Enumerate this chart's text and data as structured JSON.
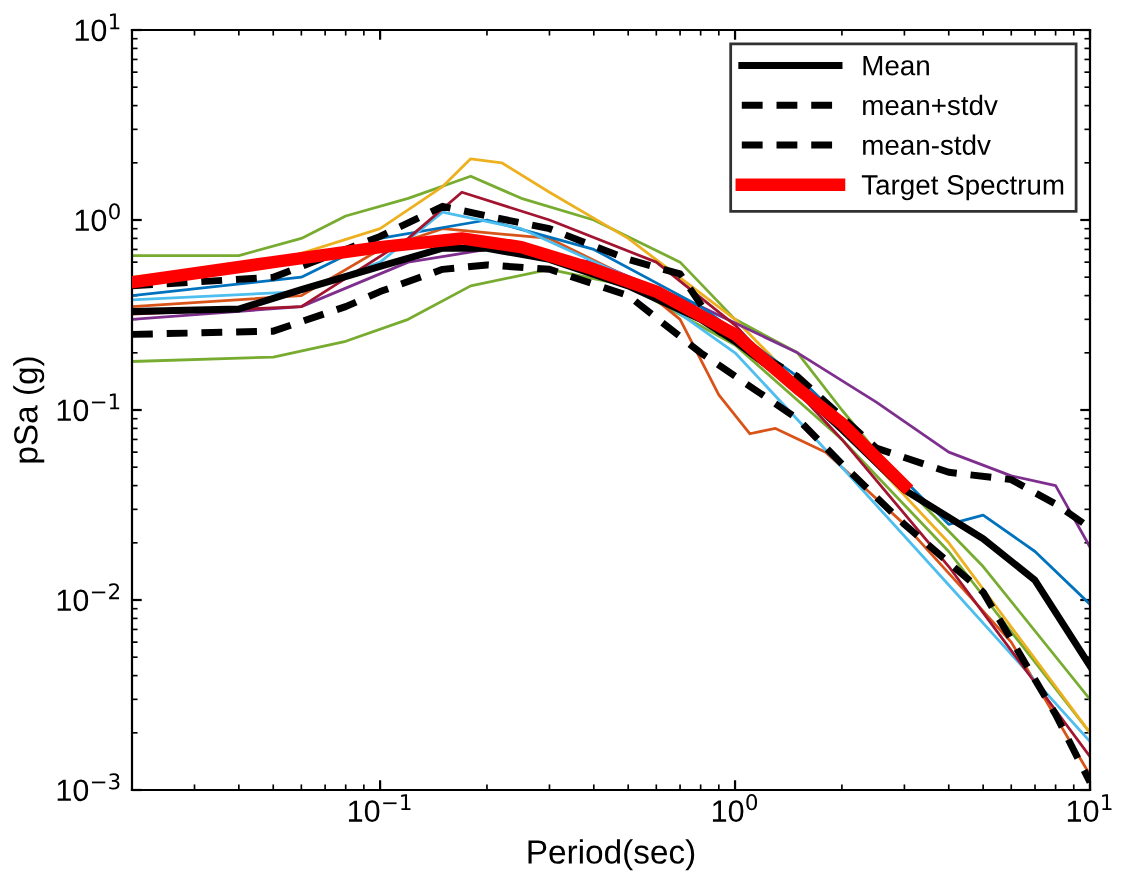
{
  "chart_data": {
    "type": "line",
    "xlabel": "Period(sec)",
    "ylabel": "pSa (g)",
    "log": "xy",
    "grid": false,
    "legend": "top right",
    "marker": "none",
    "xlim": [
      0.02,
      10
    ],
    "ylim": [
      0.001,
      10
    ],
    "xticks": [
      {
        "value": 0.1,
        "label": "10$^{−1}$"
      },
      {
        "value": 1,
        "label": "10$^{0}$"
      },
      {
        "value": 10,
        "label": "10$^{1}$"
      }
    ],
    "yticks": [
      {
        "value": 0.001,
        "label": "10$^{−3}$"
      },
      {
        "value": 0.01,
        "label": "10$^{−2}$"
      },
      {
        "value": 0.1,
        "label": "10$^{−1}$"
      },
      {
        "value": 1,
        "label": "10$^{0}$"
      },
      {
        "value": 10,
        "label": "10$^{1}$"
      }
    ],
    "series": [
      {
        "color": "#77ac30",
        "line_style": "solid",
        "x": [
          0.02,
          0.04,
          0.06,
          0.08,
          0.12,
          0.18,
          0.25,
          0.4,
          0.7,
          1,
          1.5,
          2,
          3,
          5,
          10
        ],
        "values": [
          0.65,
          0.65,
          0.8,
          1.05,
          1.3,
          1.7,
          1.3,
          1.0,
          0.6,
          0.3,
          0.2,
          0.1,
          0.04,
          0.015,
          0.003
        ]
      },
      {
        "color": "#77ac30",
        "line_style": "solid",
        "x": [
          0.02,
          0.05,
          0.08,
          0.12,
          0.18,
          0.3,
          0.5,
          1,
          2,
          4,
          10
        ],
        "values": [
          0.18,
          0.19,
          0.23,
          0.3,
          0.45,
          0.55,
          0.45,
          0.22,
          0.07,
          0.018,
          0.002
        ]
      },
      {
        "color": "#edb120",
        "line_style": "solid",
        "x": [
          0.02,
          0.05,
          0.1,
          0.15,
          0.18,
          0.22,
          0.3,
          0.5,
          1,
          2,
          4,
          10
        ],
        "values": [
          0.5,
          0.6,
          0.9,
          1.5,
          2.1,
          2.0,
          1.4,
          0.8,
          0.3,
          0.08,
          0.02,
          0.002
        ]
      },
      {
        "color": "#d95319",
        "line_style": "solid",
        "x": [
          0.02,
          0.06,
          0.1,
          0.15,
          0.3,
          0.5,
          0.7,
          0.9,
          1.1,
          1.3,
          1.8,
          3,
          6,
          10
        ],
        "values": [
          0.35,
          0.4,
          0.7,
          0.9,
          0.8,
          0.5,
          0.3,
          0.12,
          0.075,
          0.08,
          0.06,
          0.025,
          0.006,
          0.0012
        ]
      },
      {
        "color": "#7e2f8e",
        "line_style": "solid",
        "x": [
          0.02,
          0.06,
          0.12,
          0.2,
          0.4,
          0.8,
          1.5,
          2.5,
          4,
          6,
          8,
          10
        ],
        "values": [
          0.3,
          0.35,
          0.6,
          0.7,
          0.6,
          0.35,
          0.2,
          0.11,
          0.06,
          0.045,
          0.04,
          0.019
        ]
      },
      {
        "color": "#0072bd",
        "line_style": "solid",
        "x": [
          0.02,
          0.06,
          0.1,
          0.2,
          0.4,
          0.8,
          1.5,
          2.5,
          4,
          5,
          7,
          10
        ],
        "values": [
          0.4,
          0.5,
          0.8,
          1.0,
          0.7,
          0.35,
          0.15,
          0.06,
          0.025,
          0.028,
          0.018,
          0.0095
        ]
      },
      {
        "color": "#4dbeee",
        "line_style": "solid",
        "x": [
          0.02,
          0.06,
          0.1,
          0.15,
          0.25,
          0.5,
          1,
          2,
          4,
          10
        ],
        "values": [
          0.38,
          0.42,
          0.6,
          1.1,
          0.9,
          0.5,
          0.2,
          0.05,
          0.012,
          0.0018
        ]
      },
      {
        "color": "#a2142f",
        "line_style": "solid",
        "x": [
          0.02,
          0.06,
          0.12,
          0.17,
          0.3,
          0.6,
          1,
          2,
          4,
          10
        ],
        "values": [
          0.32,
          0.35,
          0.8,
          1.4,
          1.0,
          0.6,
          0.28,
          0.07,
          0.015,
          0.0015
        ]
      },
      {
        "name": "Mean",
        "color": "#000000",
        "line_style": "solid",
        "x": [
          0.02,
          0.04,
          0.06,
          0.1,
          0.15,
          0.2,
          0.3,
          0.5,
          0.8,
          1,
          1.5,
          2,
          3,
          5,
          7,
          10
        ],
        "values": [
          0.33,
          0.34,
          0.43,
          0.57,
          0.71,
          0.71,
          0.62,
          0.45,
          0.3,
          0.23,
          0.13,
          0.079,
          0.038,
          0.021,
          0.0127,
          0.0045
        ]
      },
      {
        "name": "mean+stdv",
        "color": "#000000",
        "line_style": "dashed",
        "x": [
          0.02,
          0.05,
          0.08,
          0.1,
          0.15,
          0.2,
          0.3,
          0.5,
          0.7,
          0.9,
          1.5,
          2.5,
          4,
          6,
          8,
          10
        ],
        "values": [
          0.45,
          0.5,
          0.7,
          0.82,
          1.18,
          1.05,
          0.9,
          0.62,
          0.52,
          0.26,
          0.15,
          0.063,
          0.047,
          0.043,
          0.032,
          0.024
        ]
      },
      {
        "name": "mean-stdv",
        "color": "#000000",
        "line_style": "dashed",
        "x": [
          0.02,
          0.05,
          0.08,
          0.1,
          0.15,
          0.2,
          0.3,
          0.5,
          0.8,
          1.5,
          2,
          3,
          5,
          8,
          10
        ],
        "values": [
          0.25,
          0.26,
          0.35,
          0.42,
          0.55,
          0.58,
          0.55,
          0.4,
          0.2,
          0.09,
          0.052,
          0.025,
          0.011,
          0.0025,
          0.0011
        ]
      },
      {
        "name": "Target Spectrum",
        "color": "#ff0000",
        "line_style": "solid",
        "x": [
          0.02,
          0.05,
          0.1,
          0.17,
          0.25,
          0.4,
          0.6,
          1,
          1.5,
          2,
          3
        ],
        "values": [
          0.47,
          0.6,
          0.72,
          0.8,
          0.72,
          0.55,
          0.42,
          0.25,
          0.13,
          0.085,
          0.04
        ]
      }
    ]
  }
}
